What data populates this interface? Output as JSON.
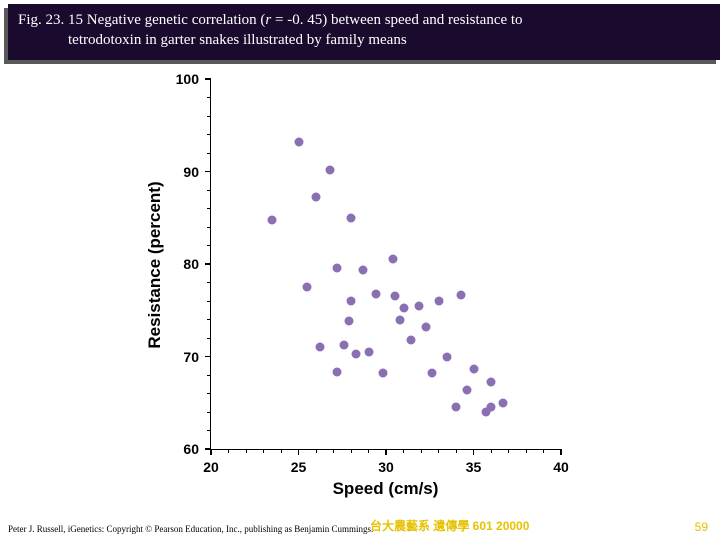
{
  "banner": {
    "prefix": "Fig. 23. 15  Negative genetic correlation (",
    "r_italic": "r",
    "after_r": " = -0. 45) between speed and resistance to",
    "line2": "tetrodotoxin in garter snakes illustrated by family means",
    "bg": "#1a0a2e",
    "shadow": "#595959",
    "fg": "#ffffff",
    "fontsize": 15
  },
  "chart": {
    "type": "scatter",
    "xlim": [
      20,
      40
    ],
    "ylim": [
      60,
      100
    ],
    "xticks": [
      20,
      25,
      30,
      35,
      40
    ],
    "yticks": [
      60,
      70,
      80,
      90,
      100
    ],
    "x_minor_step": 1,
    "y_minor_step": 2,
    "xlabel": "Speed (cm/s)",
    "ylabel": "Resistance (percent)",
    "tick_fontsize": 14,
    "label_fontsize": 17,
    "point_color": "#8a6fb3",
    "point_radius": 4.5,
    "background": "#ffffff",
    "axis_color": "#000000",
    "points": [
      [
        23.5,
        84.8
      ],
      [
        25.0,
        93.2
      ],
      [
        25.5,
        77.5
      ],
      [
        26.0,
        87.2
      ],
      [
        26.2,
        71.0
      ],
      [
        26.8,
        90.2
      ],
      [
        27.2,
        68.3
      ],
      [
        27.2,
        79.6
      ],
      [
        27.6,
        71.2
      ],
      [
        27.9,
        73.8
      ],
      [
        28.0,
        76.0
      ],
      [
        28.0,
        85.0
      ],
      [
        28.3,
        70.3
      ],
      [
        28.7,
        79.3
      ],
      [
        29.0,
        70.5
      ],
      [
        29.4,
        76.8
      ],
      [
        29.8,
        68.2
      ],
      [
        30.4,
        80.5
      ],
      [
        30.5,
        76.5
      ],
      [
        30.8,
        74.0
      ],
      [
        31.0,
        75.2
      ],
      [
        31.4,
        71.8
      ],
      [
        31.9,
        75.5
      ],
      [
        32.3,
        73.2
      ],
      [
        32.6,
        68.2
      ],
      [
        33.0,
        76.0
      ],
      [
        33.5,
        70.0
      ],
      [
        34.0,
        64.5
      ],
      [
        34.3,
        76.7
      ],
      [
        34.6,
        66.4
      ],
      [
        35.0,
        68.6
      ],
      [
        35.7,
        64.0
      ],
      [
        36.0,
        64.5
      ],
      [
        36.0,
        67.2
      ],
      [
        36.7,
        65.0
      ]
    ]
  },
  "footer": {
    "copyright": "Peter J. Russell, iGenetics: Copyright © Pearson Education, Inc., publishing as Benjamin Cummings.",
    "mid": "台大農藝系 遺傳學 601 20000",
    "page": "59"
  }
}
